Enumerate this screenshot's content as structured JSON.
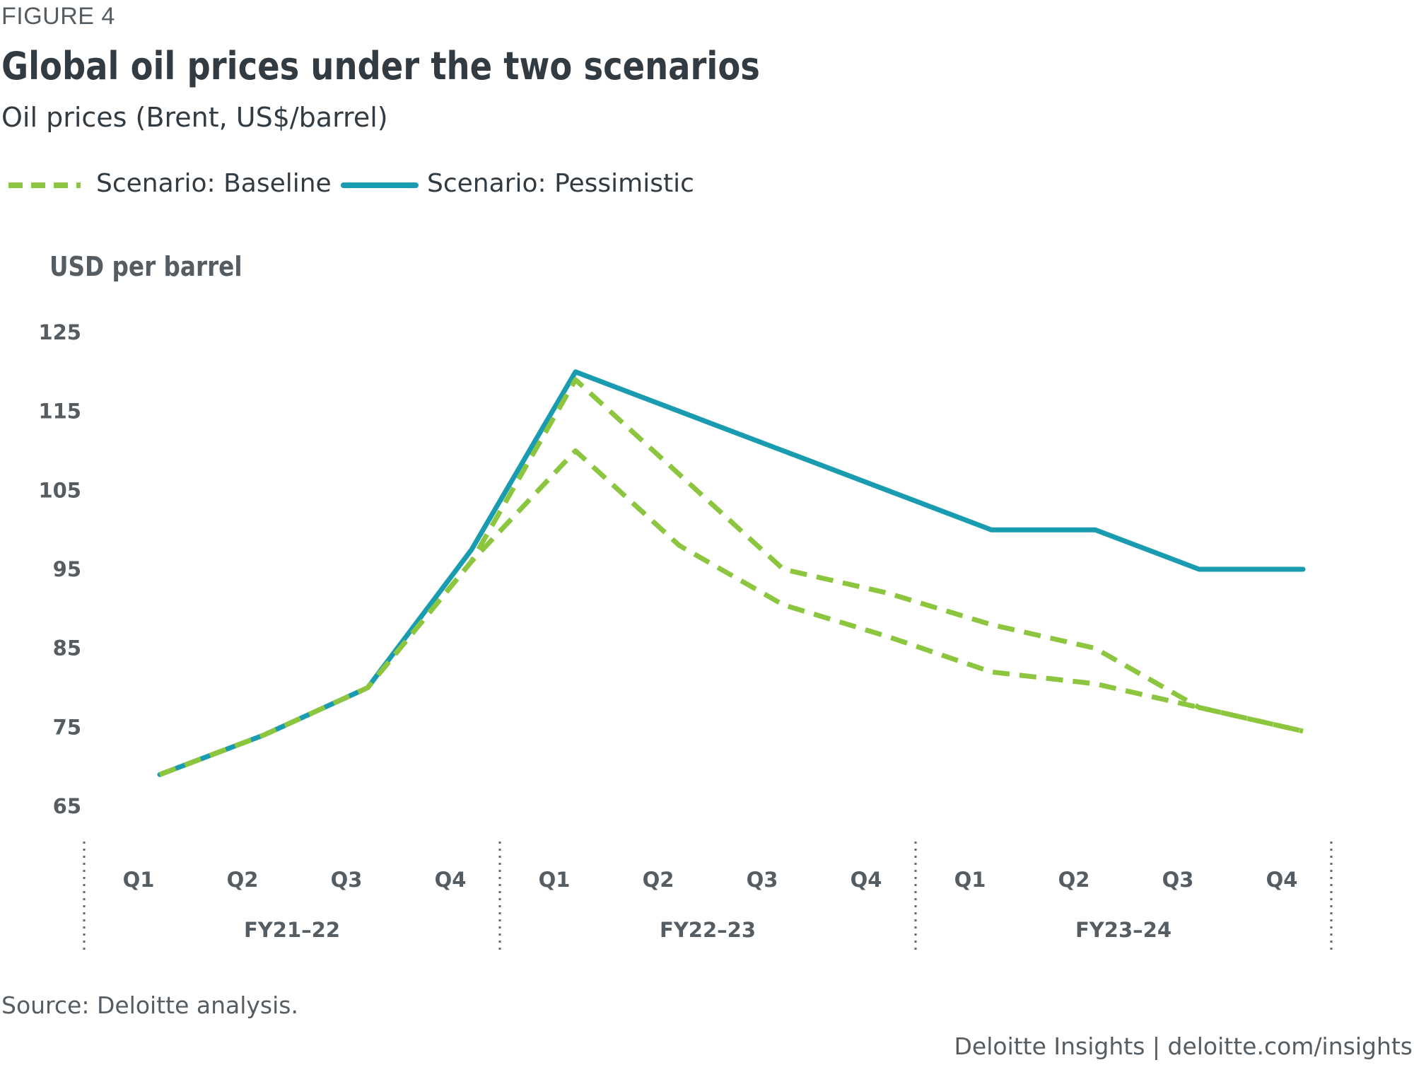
{
  "header": {
    "figure_label": "FIGURE 4",
    "title": "Global oil prices under the two scenarios",
    "subtitle": "Oil prices (Brent, US$/barrel)"
  },
  "legend": {
    "baseline_label": "Scenario: Baseline",
    "pessimistic_label": "Scenario: Pessimistic"
  },
  "colors": {
    "baseline": "#8cc63f",
    "pessimistic": "#1a9cb0",
    "text_dark": "#333b42",
    "text_axis": "#555d63",
    "divider": "#63666a"
  },
  "footer": {
    "source": "Source: Deloitte analysis.",
    "credit": "Deloitte Insights | deloitte.com/insights"
  },
  "chart_data": {
    "type": "line",
    "title": "Global oil prices under the two scenarios",
    "ylabel": "USD per barrel",
    "xlabel": "",
    "ylim": [
      65,
      125
    ],
    "yticks": [
      125,
      115,
      105,
      95,
      85,
      75,
      65
    ],
    "categories": [
      "Q1",
      "Q2",
      "Q3",
      "Q4",
      "Q1",
      "Q2",
      "Q3",
      "Q4",
      "Q1",
      "Q2",
      "Q3",
      "Q4"
    ],
    "groups": [
      {
        "label": "FY21–22",
        "span": 4
      },
      {
        "label": "FY22–23",
        "span": 4
      },
      {
        "label": "FY23–24",
        "span": 4
      }
    ],
    "series": [
      {
        "name": "Scenario: Pessimistic",
        "style": "solid",
        "values": [
          69,
          74,
          80,
          97.5,
          120,
          115,
          110,
          105,
          100,
          100,
          95,
          95
        ]
      },
      {
        "name": "Scenario: Baseline",
        "style": "dashed",
        "values": [
          69,
          74,
          80,
          96,
          119,
          107,
          95,
          92,
          88,
          85,
          77.5,
          74.5
        ]
      },
      {
        "name": "Scenario: Baseline",
        "style": "dashed",
        "values": [
          69,
          74,
          80,
          96,
          110,
          98,
          90.5,
          86.5,
          82,
          80.5,
          77.5,
          74.5
        ]
      }
    ]
  }
}
